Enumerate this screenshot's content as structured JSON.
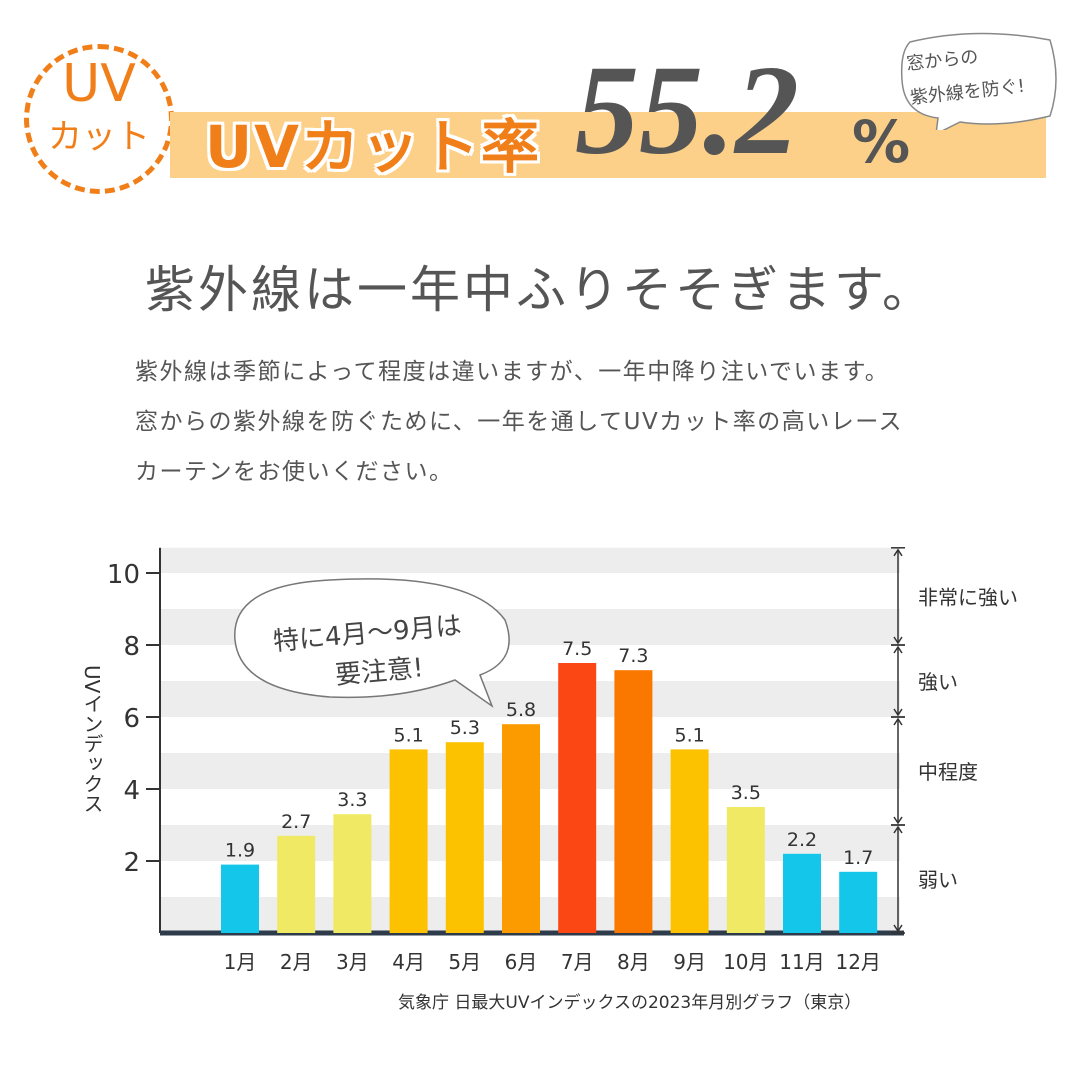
{
  "header": {
    "badge_top": "UV",
    "badge_bottom": "カット",
    "title": "UVカット率",
    "rate_value": "55.2",
    "rate_unit": "%",
    "bubble_lines": [
      "窓からの",
      "紫外線を防ぐ!"
    ]
  },
  "headline": "紫外線は一年中ふりそそぎます。",
  "paragraph": [
    "紫外線は季節によって程度は違いますが、一年中降り注いでいます。",
    "窓からの紫外線を防ぐために、一年を通してUVカット率の高いレース",
    "カーテンをお使いください。"
  ],
  "colors": {
    "accent": "#f07f1a",
    "band": "#fdd08a",
    "weak": "#13c6ea",
    "moderate_low": "#f0e964",
    "moderate_high": "#fcc200",
    "strong": "#fb9b00",
    "strong_dark": "#fa7800",
    "peak": "#fb4713"
  },
  "chart_data": {
    "type": "bar",
    "categories": [
      "1月",
      "2月",
      "3月",
      "4月",
      "5月",
      "6月",
      "7月",
      "8月",
      "9月",
      "10月",
      "11月",
      "12月"
    ],
    "values": [
      1.9,
      2.7,
      3.3,
      5.1,
      5.3,
      5.8,
      7.5,
      7.3,
      5.1,
      3.5,
      2.2,
      1.7
    ],
    "bar_colors": [
      "#13c6ea",
      "#f0e964",
      "#f0e964",
      "#fcc200",
      "#fcc200",
      "#fb9b00",
      "#fb4713",
      "#fa7800",
      "#fcc200",
      "#f0e964",
      "#13c6ea",
      "#13c6ea"
    ],
    "ylabel": "UVインデックス",
    "yticks": [
      2,
      4,
      6,
      8,
      10
    ],
    "ylim": [
      0,
      10.7
    ],
    "grid": "alternating horizontal bands",
    "levels": [
      {
        "label": "非常に強い",
        "from": 8,
        "to": 10.7
      },
      {
        "label": "強い",
        "from": 6,
        "to": 8
      },
      {
        "label": "中程度",
        "from": 3,
        "to": 6
      },
      {
        "label": "弱い",
        "from": 0,
        "to": 3
      }
    ],
    "annotation": [
      "特に4月～9月は",
      "要注意!"
    ],
    "source": "気象庁 日最大UVインデックスの2023年月別グラフ（東京）"
  }
}
